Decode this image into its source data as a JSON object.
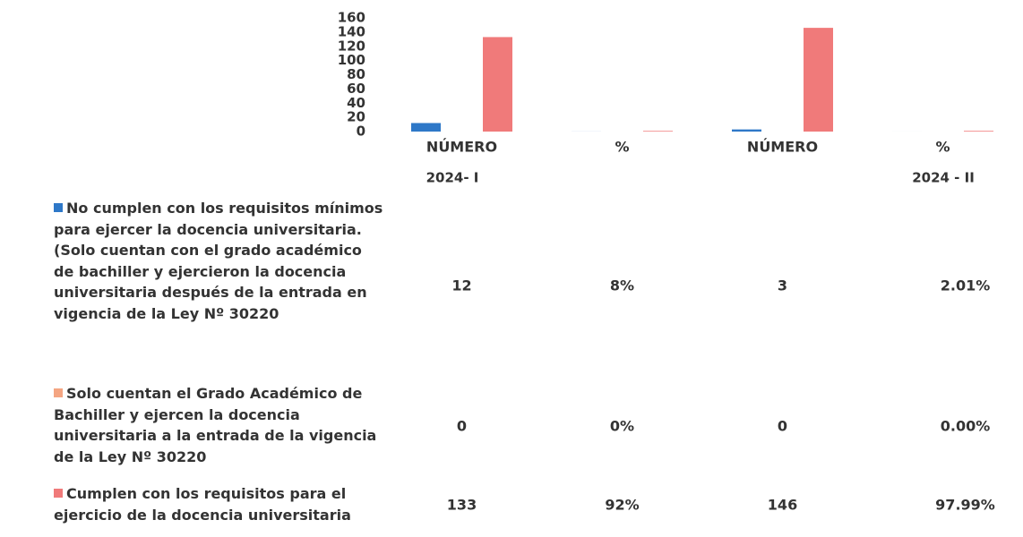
{
  "chart_data": {
    "type": "bar",
    "categories": [
      "NÚMERO",
      "%",
      "NÚMERO",
      "%"
    ],
    "group_labels": [
      "2024- I",
      "2024 - II"
    ],
    "ylim": [
      0,
      160
    ],
    "yticks": [
      0,
      20,
      40,
      60,
      80,
      100,
      120,
      140,
      160
    ],
    "series": [
      {
        "name": "No cumplen con los requisitos mínimos para ejercer la docencia universitaria. (Solo cuentan con el grado académico de bachiller y ejercieron la docencia universitaria después de la entrada en vigencia de la Ley Nº 30220",
        "color": "#2e78c8",
        "values": [
          12,
          0.08,
          3,
          0.0201
        ],
        "value_labels": [
          "12",
          "8%",
          "3",
          "2.01%"
        ]
      },
      {
        "name": "Solo cuentan el Grado Académico de Bachiller y ejercen la docencia universitaria a la entrada de la vigencia de la Ley Nº 30220",
        "color": "#f4a582",
        "values": [
          0,
          0,
          0,
          0
        ],
        "value_labels": [
          "0",
          "0%",
          "0",
          "0.00%"
        ]
      },
      {
        "name": "Cumplen con los requisitos para el ejercicio de la docencia universitaria",
        "color": "#f07a7a",
        "values": [
          133,
          0.92,
          146,
          0.9799
        ],
        "value_labels": [
          "133",
          "92%",
          "146",
          "97.99%"
        ]
      }
    ]
  }
}
